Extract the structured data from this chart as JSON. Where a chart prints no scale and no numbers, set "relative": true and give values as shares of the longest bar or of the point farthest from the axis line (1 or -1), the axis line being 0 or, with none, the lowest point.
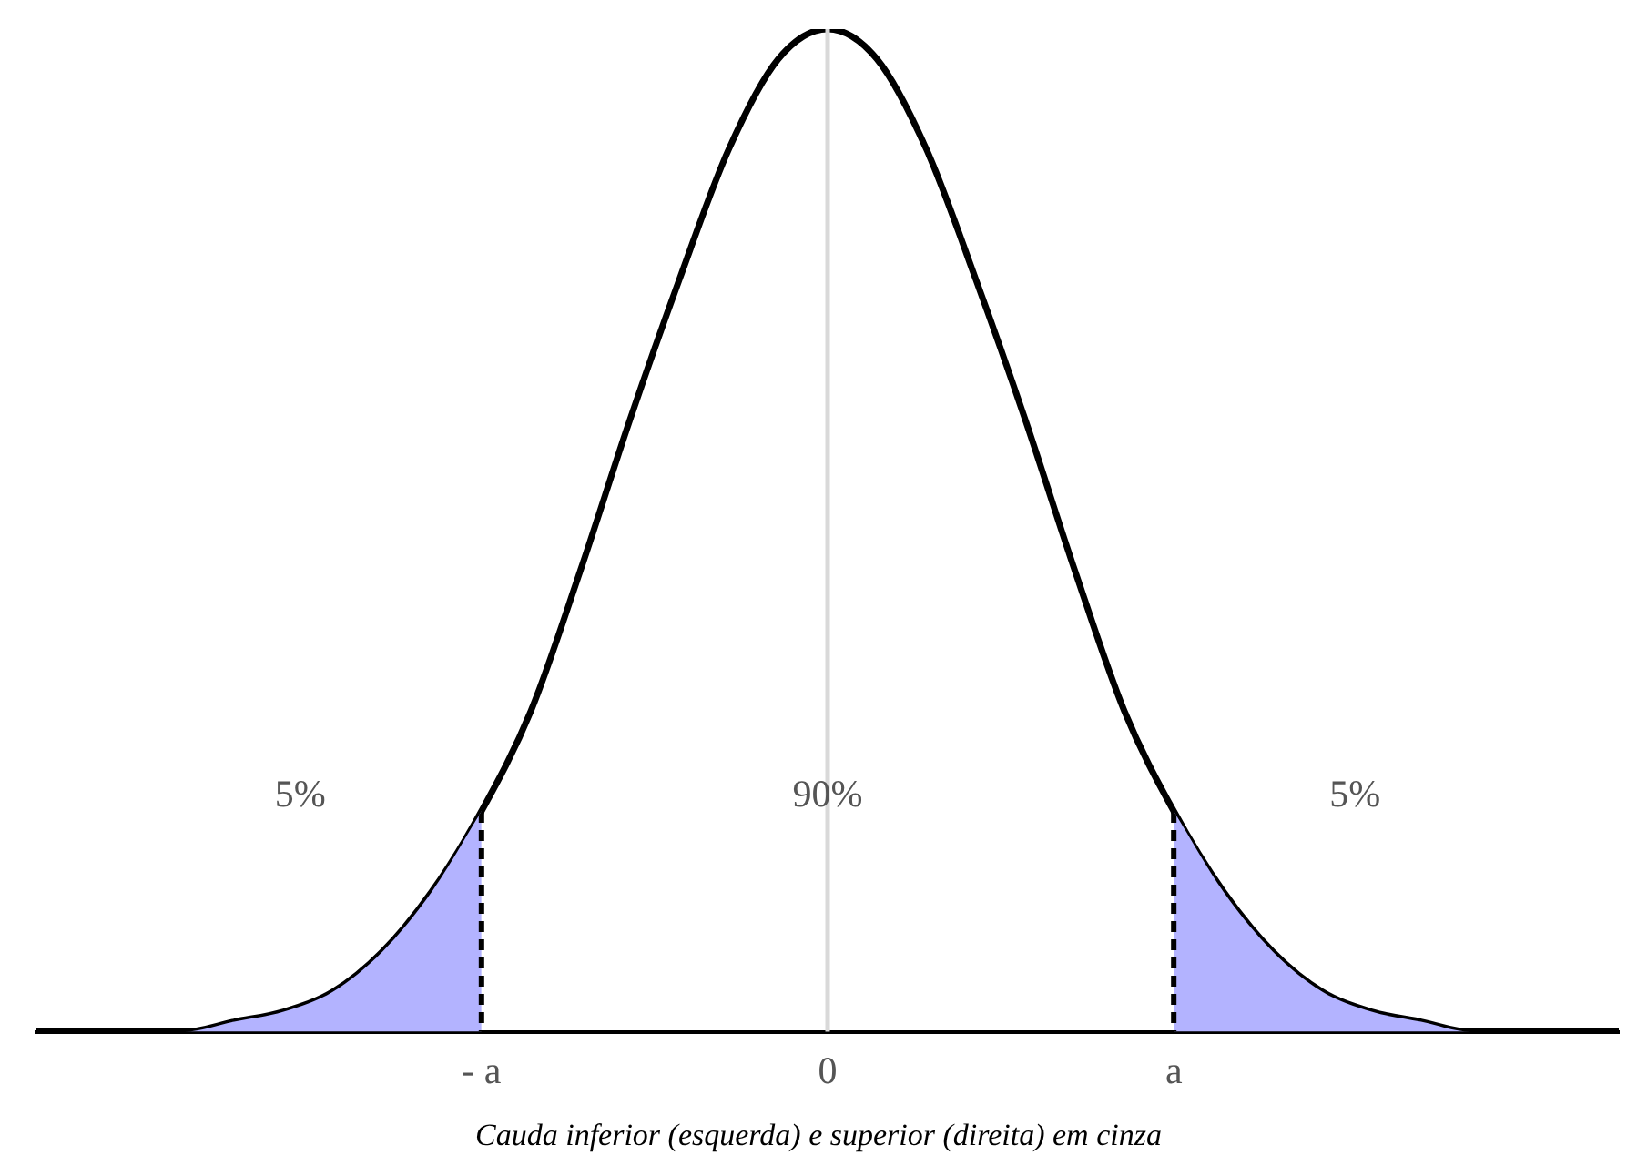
{
  "chart_data": {
    "type": "line",
    "relative": true,
    "legend": false,
    "grid": false,
    "tick_labels": "x",
    "categories": [
      null,
      null,
      null,
      null,
      null,
      null,
      null,
      null,
      null,
      "- a",
      null,
      null,
      null,
      null,
      null,
      null,
      "0",
      null,
      null,
      null,
      null,
      null,
      null,
      "a",
      null,
      null,
      null,
      null,
      null,
      null,
      null,
      null,
      null
    ],
    "ref_lines": [
      {
        "axis": "x",
        "value": "0",
        "color": "#d9d9d9"
      },
      {
        "axis": "x",
        "value": "- a",
        "color": "#000000",
        "line_style": "dashed"
      },
      {
        "axis": "x",
        "value": "a",
        "color": "#000000",
        "line_style": "dashed"
      }
    ],
    "series": [
      {
        "type": "area",
        "color": "#b3b3ff",
        "values": [
          0,
          0,
          0,
          0,
          0.01,
          0.02,
          0.04,
          0.08,
          0.14,
          0.22,
          null,
          null,
          null,
          null,
          null,
          null,
          null,
          null,
          null,
          null,
          null,
          null,
          null,
          null,
          null,
          null,
          null,
          null,
          null,
          null,
          null,
          null,
          null
        ]
      },
      {
        "type": "area",
        "color": "#b3b3ff",
        "values": [
          null,
          null,
          null,
          null,
          null,
          null,
          null,
          null,
          null,
          null,
          null,
          null,
          null,
          null,
          null,
          null,
          null,
          null,
          null,
          null,
          null,
          null,
          null,
          0.22,
          0.14,
          0.08,
          0.04,
          0.02,
          0.01,
          0,
          0,
          0,
          0
        ]
      },
      {
        "color": "#000000",
        "values": [
          0,
          0,
          0,
          0,
          0.01,
          0.02,
          0.04,
          0.08,
          0.14,
          0.22,
          0.32,
          0.46,
          0.61,
          0.75,
          0.88,
          0.97,
          1,
          0.97,
          0.88,
          0.75,
          0.61,
          0.46,
          0.32,
          0.22,
          0.14,
          0.08,
          0.04,
          0.02,
          0.01,
          0,
          0,
          0,
          0
        ]
      }
    ],
    "annotations": [
      "5%",
      "90%",
      "5%",
      "Cauda inferior (esquerda) e superior (direita) em cinza"
    ]
  }
}
